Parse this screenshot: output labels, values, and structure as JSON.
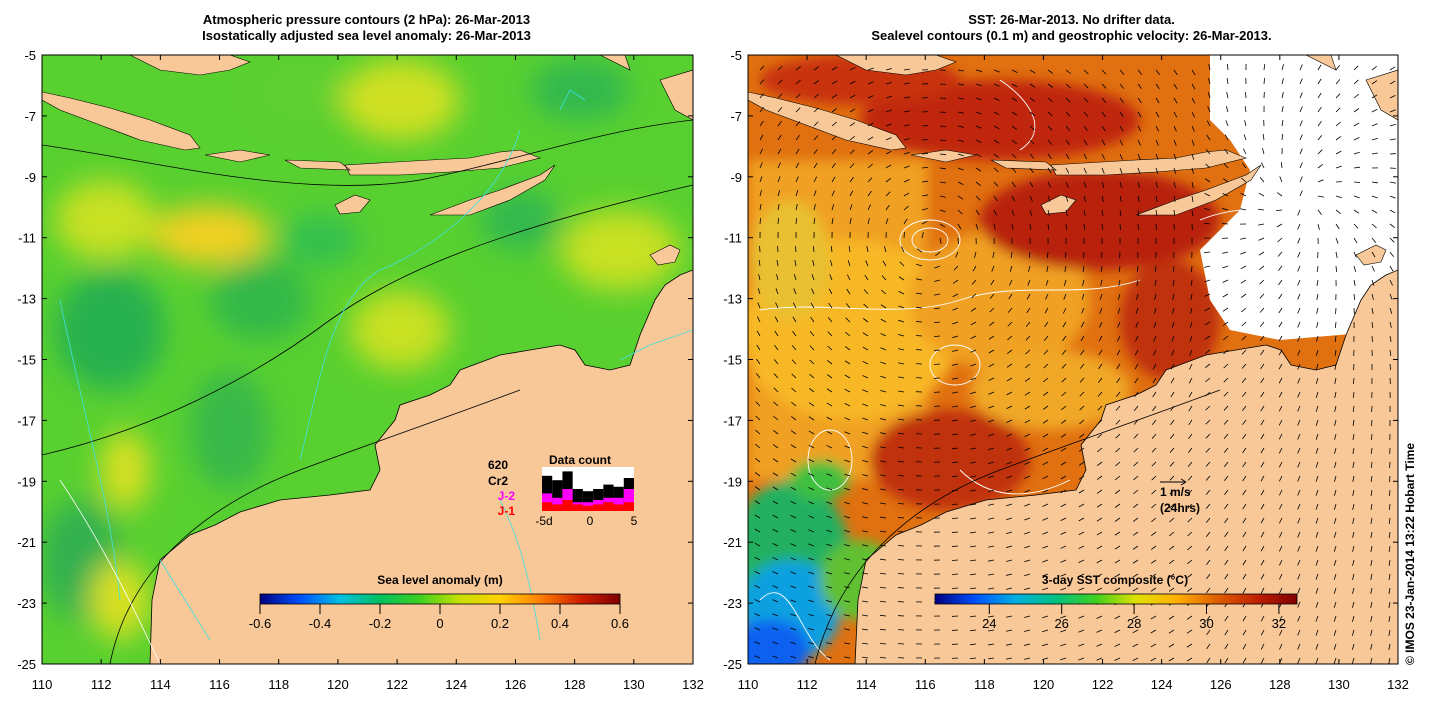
{
  "left_panel": {
    "title_line1": "Atmospheric pressure contours (2 hPa): 26-Mar-2013",
    "title_line2": "Isostatically adjusted sea level anomaly: 26-Mar-2013",
    "colorbar": {
      "label": "Sea level anomaly (m)",
      "ticks": [
        "-0.6",
        "-0.4",
        "-0.2",
        "0",
        "0.2",
        "0.4",
        "0.6"
      ],
      "range": [
        -0.6,
        0.6
      ]
    },
    "data_count": {
      "title": "Data count",
      "satellites": [
        "620",
        "Cr2",
        "J-2",
        "J-1"
      ],
      "satellite_colors": [
        "#000000",
        "#000000",
        "#ff00ff",
        "#ff0000"
      ],
      "axis_labels": [
        "-5d",
        "0",
        "5"
      ]
    }
  },
  "right_panel": {
    "title_line1": "SST: 26-Mar-2013. No drifter data.",
    "title_line2": "Sealevel contours (0.1 m) and geostrophic velocity: 26-Mar-2013.",
    "colorbar": {
      "label": "3-day SST composite (°C)",
      "ticks": [
        "24",
        "26",
        "28",
        "30",
        "32"
      ],
      "range": [
        22.5,
        32.5
      ]
    },
    "velocity_scale": {
      "label1": "1 m/s",
      "label2": "(24hrs)"
    }
  },
  "axes": {
    "x_ticks": [
      "110",
      "112",
      "114",
      "116",
      "118",
      "120",
      "122",
      "124",
      "126",
      "128",
      "130",
      "132"
    ],
    "y_ticks": [
      "-5",
      "-7",
      "-9",
      "-11",
      "-13",
      "-15",
      "-17",
      "-19",
      "-21",
      "-23",
      "-25"
    ],
    "lon_range": [
      110,
      132
    ],
    "lat_range": [
      -25,
      -5
    ]
  },
  "credit": "© IMOS 23-Jan-2014 13:22 Hobart Time",
  "colors": {
    "land": "#f8c898",
    "sla_colormap": [
      "#000080",
      "#0050ff",
      "#00c0e0",
      "#00c060",
      "#40d020",
      "#c8e000",
      "#ffd000",
      "#ff8000",
      "#d02000",
      "#800000"
    ],
    "sst_colormap": [
      "#000080",
      "#0050ff",
      "#00b0e0",
      "#00c080",
      "#40d020",
      "#e0e000",
      "#ffb000",
      "#e06000",
      "#c02000",
      "#800000"
    ]
  }
}
